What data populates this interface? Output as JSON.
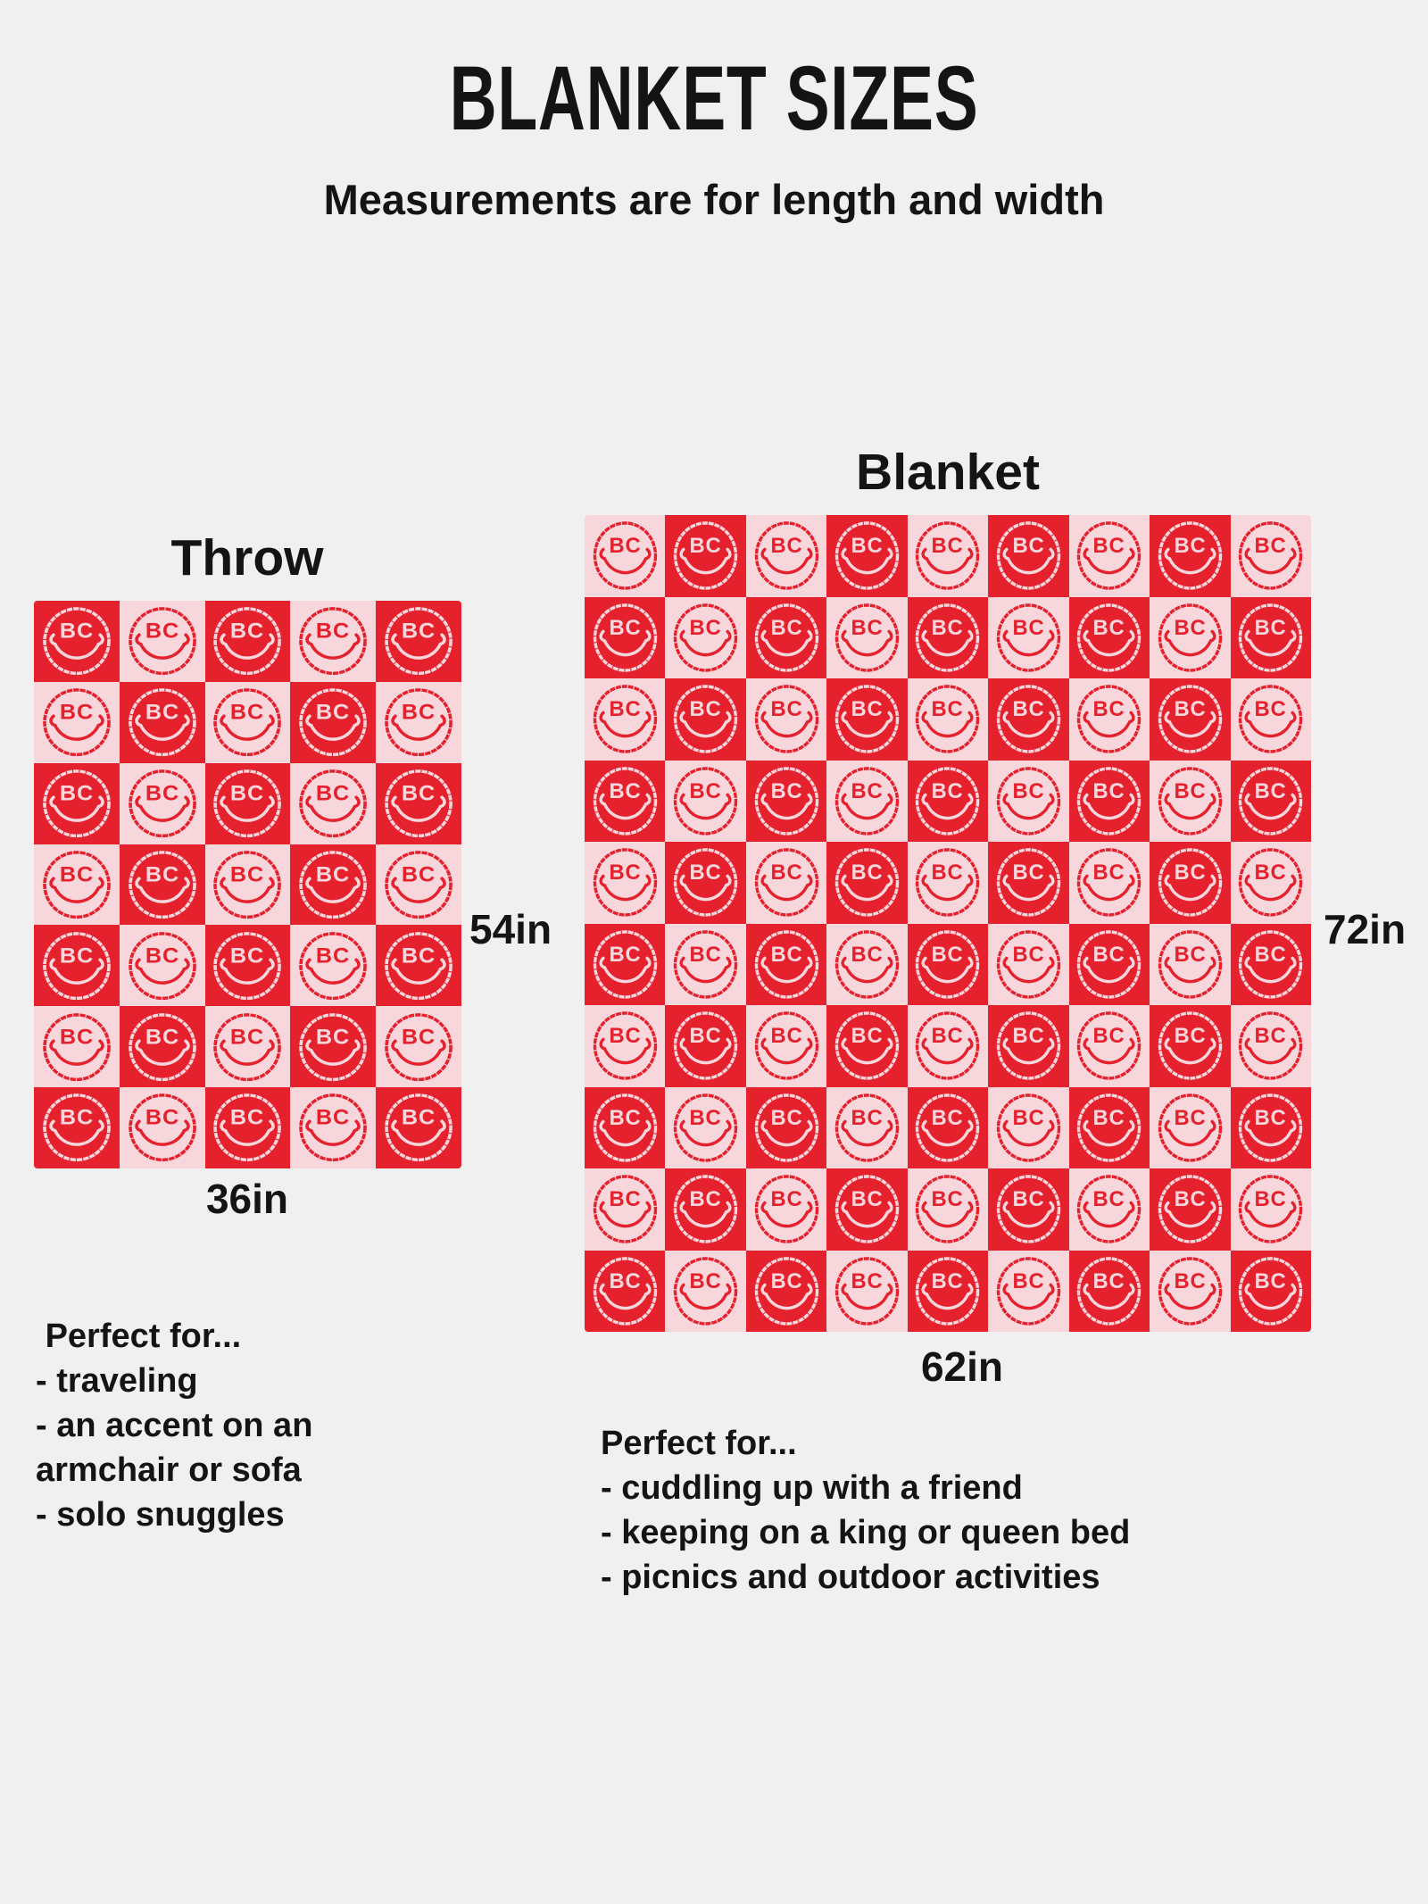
{
  "page": {
    "background": "#f0f0f1",
    "text_color": "#141414"
  },
  "header": {
    "title": "BLANKET SIZES",
    "subtitle": "Measurements are for length and width"
  },
  "pattern": {
    "monogram": "BC",
    "red": "#e6212e",
    "pink": "#f8d7dc"
  },
  "throw": {
    "label": "Throw",
    "grid": {
      "cols": 5,
      "rows": 7,
      "first_color": "red"
    },
    "length_label": "54in",
    "width_label": "36in",
    "perfect_for": {
      "heading": " Perfect for...",
      "items": [
        "- traveling",
        "- an accent on an",
        "armchair or sofa",
        "- solo snuggles"
      ]
    }
  },
  "blanket": {
    "label": "Blanket",
    "grid": {
      "cols": 9,
      "rows": 10,
      "first_color": "pink"
    },
    "length_label": "72in",
    "width_label": "62in",
    "perfect_for": {
      "heading": "Perfect for...",
      "items": [
        "- cuddling up with a friend",
        "- keeping on a king or queen bed",
        "- picnics and outdoor activities"
      ]
    }
  }
}
